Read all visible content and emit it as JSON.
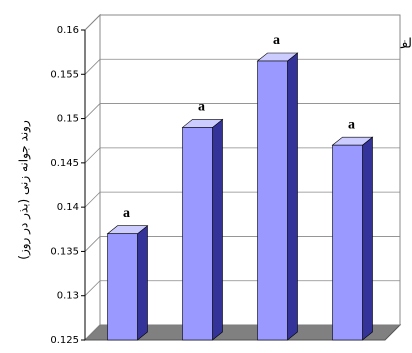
{
  "chart_data": {
    "type": "bar3d",
    "title": "لف",
    "y_label": "روند جوانه زنی (بذر در روز)",
    "categories": [
      null,
      null,
      null,
      null
    ],
    "values": [
      0.137,
      0.149,
      0.1565,
      0.147
    ],
    "letters": [
      "a",
      "a",
      "a",
      "a"
    ],
    "color": "#9999ff",
    "ylim": [
      0.125,
      0.16
    ],
    "yticks": [
      0.125,
      0.13,
      0.135,
      0.14,
      0.145,
      0.15,
      0.155,
      0.16
    ],
    "grid": true
  }
}
